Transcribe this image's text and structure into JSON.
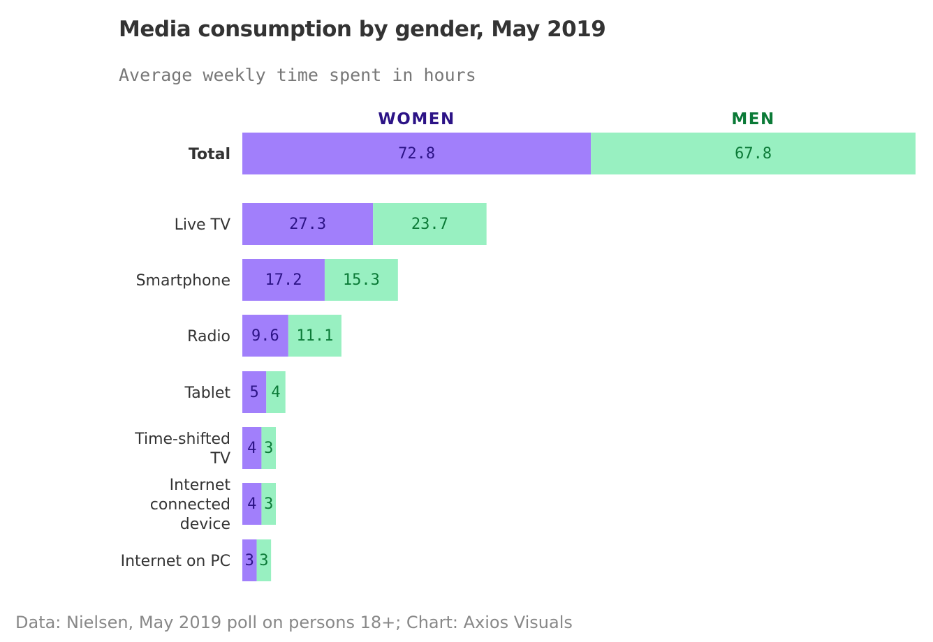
{
  "header": {
    "title": "Media consumption by gender, May 2019",
    "subtitle": "Average weekly time spent in hours"
  },
  "footer": {
    "source": "Data: Nielsen, May 2019 poll on persons 18+; Chart: Axios Visuals"
  },
  "colors": {
    "women_bar": "#a17ffb",
    "men_bar": "#98f0c1",
    "women_text": "#2c1386",
    "men_text": "#0b7a37"
  },
  "chart_data": {
    "type": "bar",
    "orientation": "horizontal",
    "stacked": true,
    "title": "Media consumption by gender, May 2019",
    "subtitle": "Average weekly time spent in hours",
    "legend": [
      "WOMEN",
      "MEN"
    ],
    "categories": [
      "Total",
      "Live TV",
      "Smartphone",
      "Radio",
      "Tablet",
      "Time-shifted TV",
      "Internet connected device",
      "Internet on PC"
    ],
    "category_lines": [
      [
        "Total"
      ],
      [
        "Live TV"
      ],
      [
        "Smartphone"
      ],
      [
        "Radio"
      ],
      [
        "Tablet"
      ],
      [
        "Time-shifted",
        "TV"
      ],
      [
        "Internet",
        "connected",
        "device"
      ],
      [
        "Internet on PC"
      ]
    ],
    "series": [
      {
        "name": "WOMEN",
        "values": [
          72.8,
          27.3,
          17.2,
          9.6,
          5,
          4,
          4,
          3
        ],
        "labels": [
          "72.8",
          "27.3",
          "17.2",
          "9.6",
          "5",
          "4",
          "4",
          "3"
        ]
      },
      {
        "name": "MEN",
        "values": [
          67.8,
          23.7,
          15.3,
          11.1,
          4,
          3,
          3,
          3
        ],
        "labels": [
          "67.8",
          "23.7",
          "15.3",
          "11.1",
          "4",
          "3",
          "3",
          "3"
        ]
      }
    ],
    "xlim": [
      0,
      140.6
    ],
    "grid": false,
    "legend_position": "top"
  }
}
